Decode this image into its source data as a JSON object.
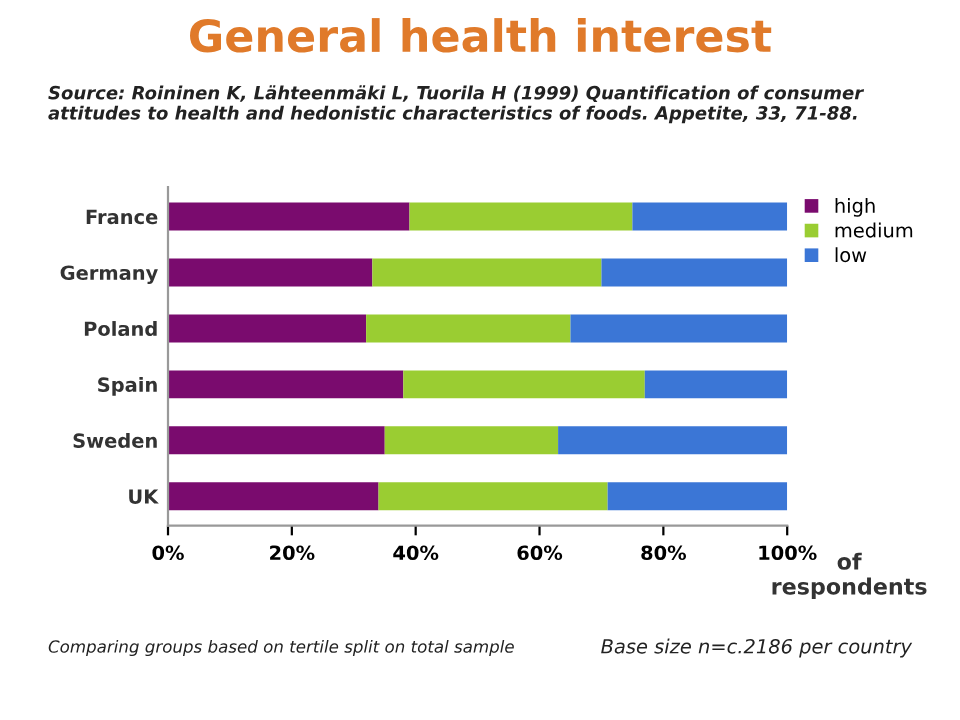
{
  "chart_data": {
    "type": "bar",
    "title": "General health interest",
    "orientation": "horizontal",
    "stacked": true,
    "categories": [
      "France",
      "Germany",
      "Poland",
      "Spain",
      "Sweden",
      "UK"
    ],
    "series": [
      {
        "name": "high",
        "color": "#7a0b6e",
        "values": [
          39,
          33,
          32,
          38,
          35,
          34
        ]
      },
      {
        "name": "medium",
        "color": "#9acd32",
        "values": [
          36,
          37,
          33,
          39,
          28,
          37
        ]
      },
      {
        "name": "low",
        "color": "#3b76d6",
        "values": [
          25,
          30,
          35,
          23,
          37,
          29
        ]
      }
    ],
    "xlim": [
      0,
      100
    ],
    "xticks": [
      {
        "value": 0,
        "label": "0%"
      },
      {
        "value": 20,
        "label": "20%"
      },
      {
        "value": 40,
        "label": "40%"
      },
      {
        "value": 60,
        "label": "60%"
      },
      {
        "value": 80,
        "label": "80%"
      },
      {
        "value": 100,
        "label": "100%"
      }
    ],
    "xlabel": "of\nrespondents",
    "legend": "top right",
    "grid": false,
    "annotations": [
      "Source: Roininen K, Lähteenmäki L, Tuorila H (1999) Quantification of consumer attitudes to health and hedonistic characteristics of foods. Appetite, 33, 71-88.",
      "Comparing groups based on tertile split on total sample",
      "Base size n=c.2186 per country"
    ]
  }
}
